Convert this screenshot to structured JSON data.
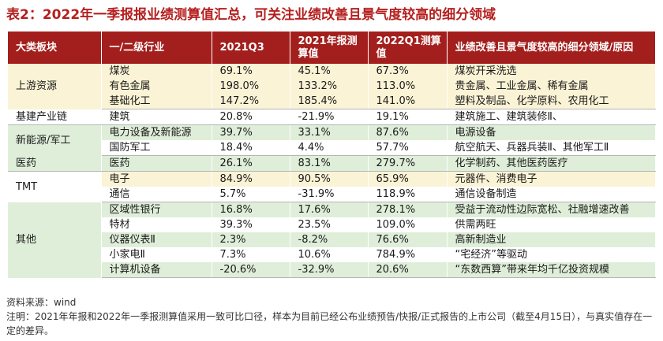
{
  "title": "表2：2022年一季报报业绩测算值汇总，可关注业绩改善且景气度较高的细分领域",
  "headers": [
    "大类板块",
    "一/二级行业",
    "2021Q3",
    "2021年报测算值",
    "2022Q1测算值",
    "业绩改善且景气度较高的细分领域/原因"
  ],
  "groups": [
    {
      "sector": "上游资源",
      "rows": [
        {
          "industry": "煤炭",
          "q3": "69.1%",
          "annual": "45.1%",
          "q1": "67.3%",
          "reason": "煤炭开采洗选"
        },
        {
          "industry": "有色金属",
          "q3": "198.0%",
          "annual": "133.2%",
          "q1": "113.0%",
          "reason": "贵金属、工业金属、稀有金属"
        },
        {
          "industry": "基础化工",
          "q3": "147.2%",
          "annual": "185.4%",
          "q1": "141.0%",
          "reason": "塑料及制品、化学原料、农用化工"
        }
      ]
    },
    {
      "sector": "基建产业链",
      "rows": [
        {
          "industry": "建筑",
          "q3": "20.8%",
          "annual": "-21.9%",
          "q1": "19.1%",
          "reason": "建筑施工、建筑装修Ⅱ、"
        }
      ]
    },
    {
      "sector": "新能源/军工",
      "rows": [
        {
          "industry": "电力设备及新能源",
          "q3": "39.7%",
          "annual": "33.1%",
          "q1": "87.6%",
          "reason": "电源设备"
        },
        {
          "industry": "国防军工",
          "q3": "18.4%",
          "annual": "4.4%",
          "q1": "57.7%",
          "reason": "航空航天、兵器兵装Ⅱ、其他军工Ⅱ"
        }
      ]
    },
    {
      "sector": "医药",
      "rows": [
        {
          "industry": "医药",
          "q3": "26.1%",
          "annual": "83.1%",
          "q1": "279.7%",
          "reason": "化学制药、其他医药医疗"
        }
      ]
    },
    {
      "sector": "TMT",
      "rows": [
        {
          "industry": "电子",
          "q3": "84.9%",
          "annual": "90.5%",
          "q1": "65.9%",
          "reason": "元器件、消费电子"
        },
        {
          "industry": "通信",
          "q3": "5.7%",
          "annual": "-31.9%",
          "q1": "118.9%",
          "reason": "通信设备制造"
        }
      ]
    },
    {
      "sector": "其他",
      "rows": [
        {
          "industry": "区域性银行",
          "q3": "16.8%",
          "annual": "17.6%",
          "q1": "278.1%",
          "reason": "受益于流动性边际宽松、社融增速改善"
        },
        {
          "industry": "特材",
          "q3": "39.3%",
          "annual": "23.5%",
          "q1": "109.0%",
          "reason": "供需两旺"
        },
        {
          "industry": "仪器仪表Ⅱ",
          "q3": "2.3%",
          "annual": "-8.2%",
          "q1": "76.6%",
          "reason": "高新制造业"
        },
        {
          "industry": "小家电Ⅱ",
          "q3": "7.3%",
          "annual": "10.6%",
          "q1": "784.9%",
          "reason": "“宅经济”等驱动"
        },
        {
          "industry": "计算机设备",
          "q3": "-20.6%",
          "annual": "-32.9%",
          "q1": "20.6%",
          "reason": "“东数西算”带来年均千亿投资规模"
        }
      ]
    }
  ],
  "source": "资料来源：wind",
  "note": "注明：2021年年报和2022年一季报测算值采用一致可比口径，样本为目前已经公布业绩预告/快报/正式报告的上市公司（截至4月15日），与真实值存在一定的差异。",
  "colors": {
    "title": "#b5201f",
    "header_bg": "#a31f1d",
    "band_green": "#dfeed9",
    "band_yellow": "#fbf3d5"
  }
}
